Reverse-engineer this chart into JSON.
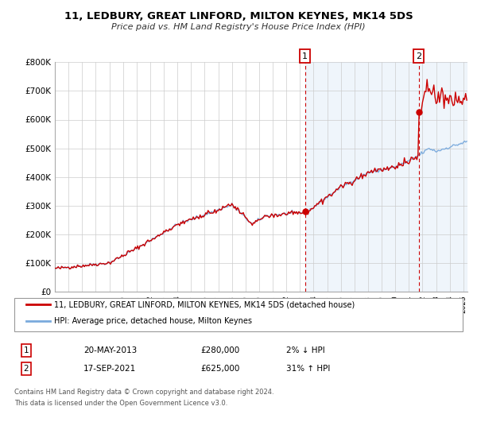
{
  "title": "11, LEDBURY, GREAT LINFORD, MILTON KEYNES, MK14 5DS",
  "subtitle": "Price paid vs. HM Land Registry's House Price Index (HPI)",
  "legend_line1": "11, LEDBURY, GREAT LINFORD, MILTON KEYNES, MK14 5DS (detached house)",
  "legend_line2": "HPI: Average price, detached house, Milton Keynes",
  "annotation1_label": "1",
  "annotation1_date": "20-MAY-2013",
  "annotation1_price": "£280,000",
  "annotation1_hpi": "2% ↓ HPI",
  "annotation1_year": 2013.38,
  "annotation1_value": 280000,
  "annotation2_label": "2",
  "annotation2_date": "17-SEP-2021",
  "annotation2_price": "£625,000",
  "annotation2_hpi": "31% ↑ HPI",
  "annotation2_year": 2021.71,
  "annotation2_value": 625000,
  "footer1": "Contains HM Land Registry data © Crown copyright and database right 2024.",
  "footer2": "This data is licensed under the Open Government Licence v3.0.",
  "ylim": [
    0,
    800000
  ],
  "xlim_start": 1995.0,
  "xlim_end": 2025.3,
  "hpi_color": "#7aaadd",
  "price_color": "#cc0000",
  "background_color": "#e8f0fa",
  "plot_bg_color": "#ffffff",
  "grid_color": "#cccccc",
  "dashed_line_color": "#cc0000"
}
